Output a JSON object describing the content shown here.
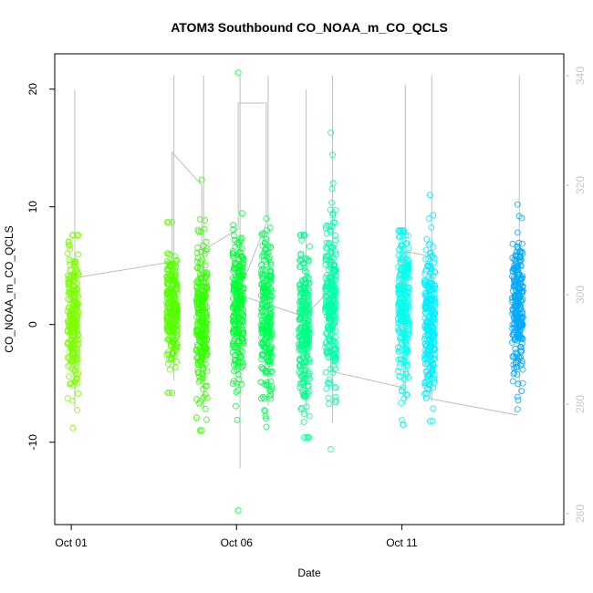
{
  "chart_data": {
    "type": "scatter",
    "title": "ATOM3 Southbound CO_NOAA_m_CO_QCLS",
    "xlabel": "Date",
    "ylabel": "CO_NOAA_m_CO_QCLS",
    "y2label": "",
    "x_ticks": [
      {
        "value": 1,
        "label": "Oct 01"
      },
      {
        "value": 6,
        "label": "Oct 06"
      },
      {
        "value": 11,
        "label": "Oct 11"
      }
    ],
    "y_ticks": [
      -10,
      0,
      10,
      20
    ],
    "y2_ticks": [
      260,
      280,
      300,
      320,
      340
    ],
    "xlim": [
      0.5,
      15.9
    ],
    "ylim": [
      -17,
      23
    ],
    "y2lim": [
      258,
      344
    ],
    "grid": false,
    "legend": "none",
    "point_color_gradient": [
      "#80ff00",
      "#00aaff"
    ],
    "line_color": "#bebebe",
    "secondary_axis_color": "#c8c8c8",
    "series": [
      {
        "x": 1.05,
        "center": 0.5,
        "spread": 3.2,
        "min": -8.8,
        "max": 7.6,
        "color": "#7fff00"
      },
      {
        "x": 4.05,
        "center": 1.5,
        "spread": 2.2,
        "min": -5.8,
        "max": 8.7,
        "color": "#55ff00"
      },
      {
        "x": 4.95,
        "center": -0.2,
        "spread": 3.4,
        "min": -9.0,
        "max": 12.3,
        "color": "#33ff00"
      },
      {
        "x": 6.05,
        "center": 1.5,
        "spread": 3.4,
        "min": -15.8,
        "max": 21.4,
        "color": "#00ff33"
      },
      {
        "x": 6.9,
        "center": 0.5,
        "spread": 3.5,
        "min": -8.7,
        "max": 9.0,
        "color": "#00ff55"
      },
      {
        "x": 8.05,
        "center": -0.2,
        "spread": 3.4,
        "min": -9.6,
        "max": 7.6,
        "color": "#00ff88"
      },
      {
        "x": 8.85,
        "center": 2.5,
        "spread": 3.5,
        "min": -10.6,
        "max": 16.3,
        "color": "#00ffaa"
      },
      {
        "x": 11.05,
        "center": 1.5,
        "spread": 3.2,
        "min": -8.5,
        "max": 8.0,
        "color": "#00ffee"
      },
      {
        "x": 11.85,
        "center": 0.2,
        "spread": 3.2,
        "min": -8.2,
        "max": 11.0,
        "color": "#00eeff"
      },
      {
        "x": 14.5,
        "center": 1.5,
        "spread": 3.0,
        "min": -7.2,
        "max": 10.2,
        "color": "#00aaff"
      }
    ],
    "y2_trace": [
      {
        "x": 1.05,
        "y": 303
      },
      {
        "x": 4.05,
        "y": 306
      },
      {
        "x": 4.05,
        "y": 326
      },
      {
        "x": 4.95,
        "y": 320
      },
      {
        "x": 4.95,
        "y": 308
      },
      {
        "x": 6.05,
        "y": 312
      },
      {
        "x": 6.05,
        "y": 335
      },
      {
        "x": 6.9,
        "y": 335
      },
      {
        "x": 6.9,
        "y": 313
      },
      {
        "x": 6.05,
        "y": 300
      },
      {
        "x": 8.05,
        "y": 296
      },
      {
        "x": 8.85,
        "y": 301
      },
      {
        "x": 8.85,
        "y": 286
      },
      {
        "x": 11.05,
        "y": 283
      },
      {
        "x": 11.05,
        "y": 308
      },
      {
        "x": 11.85,
        "y": 307
      },
      {
        "x": 11.85,
        "y": 281
      },
      {
        "x": 14.5,
        "y": 278
      }
    ]
  }
}
